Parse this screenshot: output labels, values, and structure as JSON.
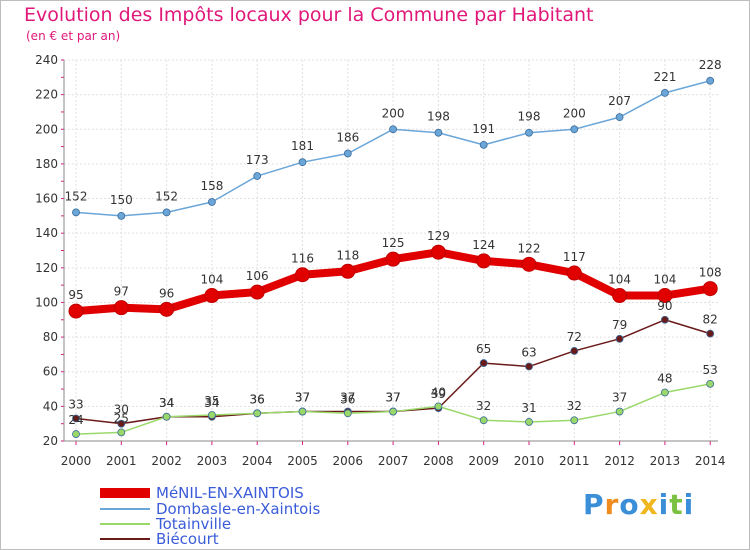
{
  "title": "Evolution des Impôts locaux pour la Commune par Habitant",
  "subtitle": "(en € et par an)",
  "brand": {
    "letters": [
      "P",
      "r",
      "o",
      "x",
      "i",
      "t",
      "i"
    ],
    "colors": [
      "#3a8fd8",
      "#f08c1e",
      "#3a8fd8",
      "#f0b81e",
      "#3a8fd8",
      "#7cc242",
      "#3a8fd8"
    ]
  },
  "chart_data": {
    "type": "line",
    "x": [
      "2000",
      "2001",
      "2002",
      "2003",
      "2004",
      "2005",
      "2006",
      "2007",
      "2008",
      "2009",
      "2010",
      "2011",
      "2012",
      "2013",
      "2014"
    ],
    "ylim": [
      20,
      240
    ],
    "yticks": [
      "20",
      "40",
      "60",
      "80",
      "100",
      "120",
      "140",
      "160",
      "180",
      "200",
      "220",
      "240"
    ],
    "grid": true,
    "legend_placement": "bottom-left",
    "series": [
      {
        "name": "MéNIL-EN-XAINTOIS",
        "color": "#e00000",
        "values": [
          95,
          97,
          96,
          104,
          106,
          116,
          118,
          125,
          129,
          124,
          122,
          117,
          104,
          104,
          108
        ]
      },
      {
        "name": "Dombasle-en-Xaintois",
        "color": "#6aa6d8",
        "values": [
          152,
          150,
          152,
          158,
          173,
          181,
          186,
          200,
          198,
          191,
          198,
          200,
          207,
          221,
          228
        ]
      },
      {
        "name": "Totainville",
        "color": "#9ad86a",
        "values": [
          24,
          25,
          34,
          35,
          36,
          37,
          36,
          37,
          40,
          32,
          31,
          32,
          37,
          48,
          53
        ]
      },
      {
        "name": "Biécourt",
        "color": "#6b1a1a",
        "values": [
          33,
          30,
          34,
          34,
          36,
          37,
          37,
          37,
          39,
          65,
          63,
          72,
          79,
          90,
          82
        ]
      }
    ]
  }
}
